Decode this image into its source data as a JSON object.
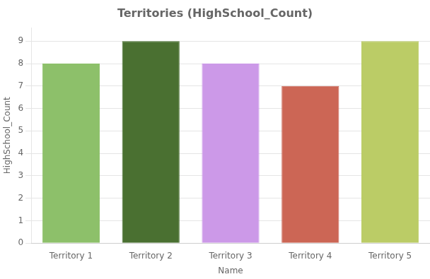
{
  "chart_data": {
    "type": "bar",
    "title": "Territories (HighSchool_Count)",
    "xlabel": "Name",
    "ylabel": "HighSchool_Count",
    "categories": [
      "Territory 1",
      "Territory 2",
      "Territory 3",
      "Territory 4",
      "Territory 5"
    ],
    "values": [
      8,
      9,
      8,
      7,
      9
    ],
    "colors": [
      "#8DC06A",
      "#4A7031",
      "#CC99E8",
      "#CC6655",
      "#BBCC66"
    ],
    "ylim": [
      0,
      9.6
    ],
    "yticks": [
      0,
      1,
      2,
      3,
      4,
      5,
      6,
      7,
      8,
      9
    ],
    "grid": true
  }
}
